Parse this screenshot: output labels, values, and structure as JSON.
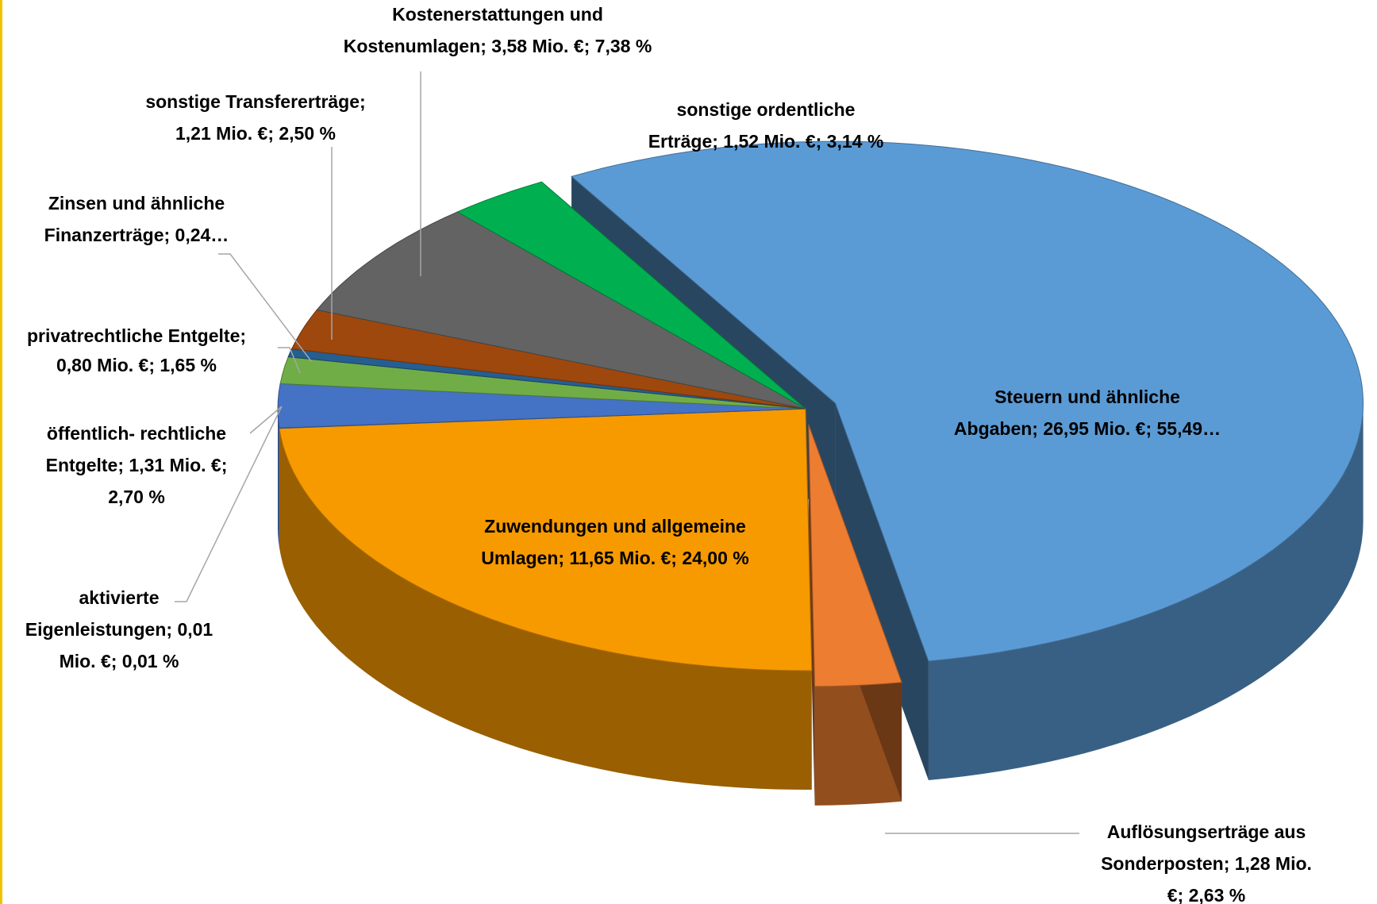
{
  "chart_data": {
    "type": "pie",
    "values": [
      26.95,
      1.28,
      11.65,
      0.01,
      1.31,
      0.8,
      0.24,
      1.21,
      3.58,
      1.52
    ],
    "value_labels": [
      [
        "Steuern und ähnliche",
        "Abgaben; 26,95 Mio. €; 55,49…"
      ],
      [
        "Auflösungserträge aus",
        "Sonderposten; 1,28 Mio.",
        "€; 2,63 %"
      ],
      [
        "Zuwendungen und allgemeine",
        "Umlagen; 11,65 Mio. €; 24,00 %"
      ],
      [
        "aktivierte",
        "Eigenleistungen; 0,01",
        "Mio. €; 0,01 %"
      ],
      [
        "öffentlich- rechtliche",
        "Entgelte; 1,31 Mio. €;",
        "2,70 %"
      ],
      [
        "privatrechtliche Entgelte;",
        "0,80 Mio. €; 1,65 %"
      ],
      [
        "Zinsen und ähnliche",
        "Finanzerträge; 0,24…"
      ],
      [
        "sonstige Transfererträge;",
        "1,21 Mio. €; 2,50 %"
      ],
      [
        "Kostenerstattungen und",
        "Kostenumlagen; 3,58 Mio. €; 7,38 %"
      ],
      [
        "sonstige ordentliche",
        "Erträge; 1,52 Mio. €; 3,14 %"
      ]
    ],
    "colors": [
      "#5b9bd5",
      "#ed7d31",
      "#f79a00",
      "#7f7f7f",
      "#4472c4",
      "#70ad47",
      "#255e91",
      "#9e480e",
      "#636363",
      "#00b050"
    ]
  }
}
